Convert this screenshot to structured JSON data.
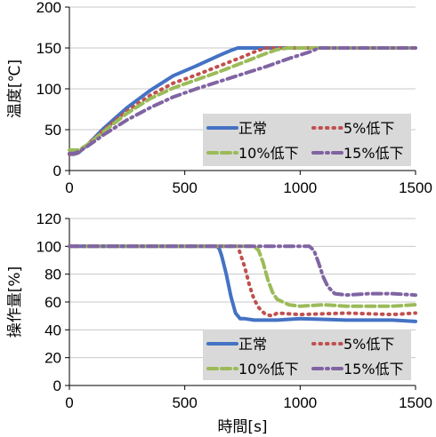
{
  "chart_data": [
    {
      "type": "line",
      "title": "",
      "xlabel": "",
      "ylabel": "温度[℃]",
      "xlim": [
        0,
        1500
      ],
      "ylim": [
        0,
        200
      ],
      "xticks": [
        "0",
        "500",
        "1000",
        "1500"
      ],
      "yticks": [
        "0",
        "50",
        "100",
        "150",
        "200"
      ],
      "legend_position": "bottom-right",
      "series": [
        {
          "name": "正常",
          "color": "#4472C4",
          "style": "solid",
          "x": [
            0,
            20,
            40,
            80,
            150,
            250,
            350,
            450,
            550,
            650,
            700,
            730,
            760,
            800,
            1000,
            1500
          ],
          "y": [
            20,
            20,
            22,
            32,
            52,
            77,
            98,
            116,
            128,
            141,
            147,
            150,
            150,
            150,
            150,
            150
          ]
        },
        {
          "name": "5%低下",
          "color": "#C0504D",
          "style": "dotted",
          "x": [
            0,
            20,
            40,
            80,
            150,
            250,
            350,
            450,
            550,
            650,
            750,
            800,
            850,
            900,
            1000,
            1500
          ],
          "y": [
            20,
            20,
            22,
            32,
            50,
            73,
            92,
            107,
            117,
            128,
            139,
            145,
            150,
            150,
            150,
            150
          ]
        },
        {
          "name": "10%低下",
          "color": "#9BBB59",
          "style": "dashed",
          "x": [
            0,
            20,
            40,
            80,
            150,
            250,
            350,
            450,
            550,
            650,
            750,
            850,
            900,
            950,
            1000,
            1500
          ],
          "y": [
            25,
            25,
            25,
            32,
            48,
            70,
            88,
            101,
            111,
            121,
            132,
            143,
            148,
            150,
            150,
            150
          ]
        },
        {
          "name": "15%低下",
          "color": "#8064A2",
          "style": "dashdot",
          "x": [
            0,
            20,
            40,
            80,
            150,
            250,
            350,
            450,
            550,
            650,
            750,
            850,
            950,
            1050,
            1080,
            1500
          ],
          "y": [
            21,
            21,
            23,
            30,
            44,
            62,
            77,
            90,
            100,
            109,
            118,
            127,
            137,
            146,
            150,
            150
          ]
        }
      ]
    },
    {
      "type": "line",
      "title": "",
      "xlabel": "時間[s]",
      "ylabel": "操作量[%]",
      "xlim": [
        0,
        1500
      ],
      "ylim": [
        0,
        120
      ],
      "xticks": [
        "0",
        "500",
        "1000",
        "1500"
      ],
      "yticks": [
        "0",
        "20",
        "40",
        "60",
        "80",
        "100",
        "120"
      ],
      "legend_position": "bottom-right",
      "series": [
        {
          "name": "正常",
          "color": "#4472C4",
          "style": "solid",
          "x": [
            0,
            640,
            650,
            660,
            680,
            700,
            720,
            740,
            760,
            800,
            850,
            900,
            1000,
            1200,
            1400,
            1500
          ],
          "y": [
            100,
            100,
            98,
            93,
            80,
            64,
            52,
            48,
            48,
            47,
            47,
            47,
            48,
            47,
            47,
            46
          ]
        },
        {
          "name": "5%低下",
          "color": "#C0504D",
          "style": "dotted",
          "x": [
            0,
            730,
            740,
            760,
            780,
            800,
            820,
            850,
            880,
            900,
            1000,
            1200,
            1400,
            1500
          ],
          "y": [
            100,
            100,
            95,
            85,
            72,
            62,
            56,
            51,
            50,
            52,
            51,
            52,
            51,
            52
          ]
        },
        {
          "name": "10%低下",
          "color": "#9BBB59",
          "style": "dashed",
          "x": [
            0,
            800,
            820,
            840,
            860,
            880,
            900,
            950,
            1000,
            1100,
            1200,
            1400,
            1500
          ],
          "y": [
            100,
            100,
            97,
            88,
            76,
            67,
            62,
            58,
            57,
            58,
            57,
            57,
            58
          ]
        },
        {
          "name": "15%低下",
          "color": "#8064A2",
          "style": "dashdot",
          "x": [
            0,
            1040,
            1060,
            1080,
            1100,
            1120,
            1150,
            1200,
            1300,
            1400,
            1500
          ],
          "y": [
            100,
            100,
            97,
            88,
            78,
            71,
            66,
            65,
            66,
            66,
            65
          ]
        }
      ]
    }
  ]
}
